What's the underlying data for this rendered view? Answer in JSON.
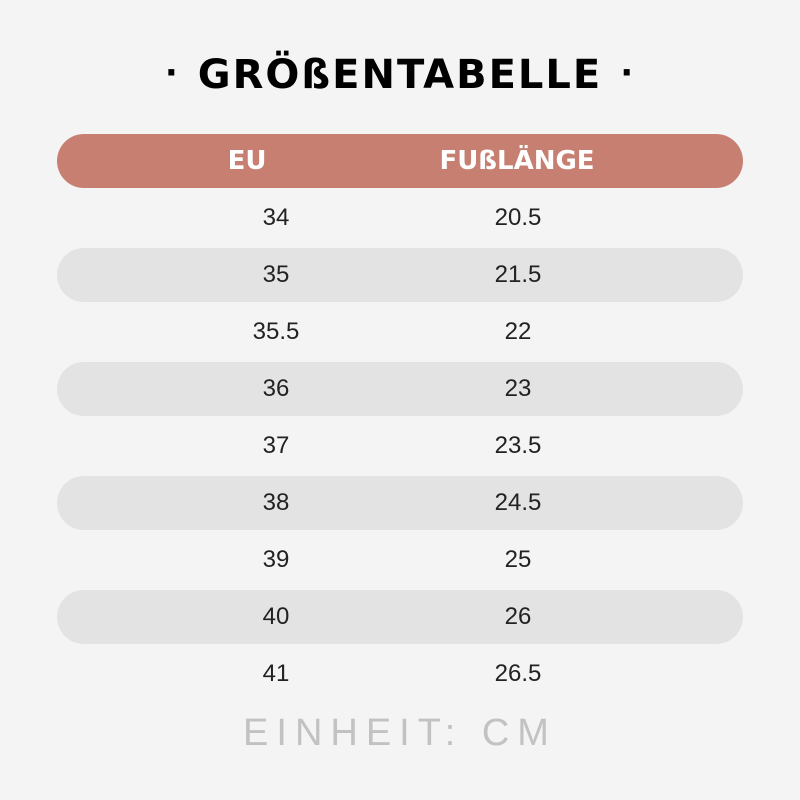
{
  "title": "GRÖßENTABELLE",
  "title_decoration": "·",
  "header": {
    "col_eu": "EU",
    "col_length": "FUßLÄNGE"
  },
  "rows": [
    {
      "eu": "34",
      "length": "20.5"
    },
    {
      "eu": "35",
      "length": "21.5"
    },
    {
      "eu": "35.5",
      "length": "22"
    },
    {
      "eu": "36",
      "length": "23"
    },
    {
      "eu": "37",
      "length": "23.5"
    },
    {
      "eu": "38",
      "length": "24.5"
    },
    {
      "eu": "39",
      "length": "25"
    },
    {
      "eu": "40",
      "length": "26"
    },
    {
      "eu": "41",
      "length": "26.5"
    }
  ],
  "unit_note": "EINHEIT: CM",
  "colors": {
    "header_bg": "#c67f71",
    "stripe_bg": "#e3e3e3",
    "page_bg": "#f4f4f4"
  }
}
